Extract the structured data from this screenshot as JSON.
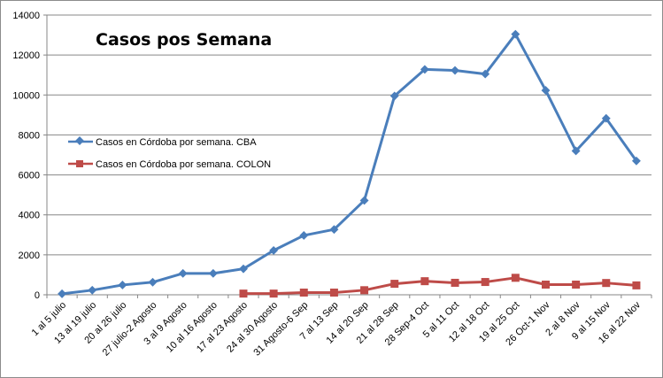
{
  "chart_data": {
    "type": "line",
    "title": "Casos pos Semana",
    "xlabel": "",
    "ylabel": "",
    "ylim": [
      0,
      14000
    ],
    "yticks": [
      0,
      2000,
      4000,
      6000,
      8000,
      10000,
      12000,
      14000
    ],
    "grid": true,
    "legend_position": "left",
    "categories": [
      "1 al 5 julio",
      "13 al 19 julio",
      "20 al 26 julio",
      "27 julio-2 Agosto",
      "3 al 9 Agosto",
      "10 al 16 Agosto",
      "17 al 23 Agosto",
      "24 al 30 Agosto",
      "31 Agosto-6 Sep",
      "7 al 13 Sep",
      "14 al 20 Sep",
      "21 al 28 Sep",
      "28 Sep-4 Oct",
      "5 al 11 Oct",
      "12 al 18 Oct",
      "19 al 25 Oct",
      "26 Oct-1 Nov",
      "2 al 8 Nov",
      "9 al 15 Nov",
      "16 al 22 Nov"
    ],
    "series": [
      {
        "name": "Casos en Córdoba por semana. CBA",
        "color": "#4a7ebb",
        "marker": "diamond",
        "values": [
          50,
          230,
          490,
          630,
          1070,
          1070,
          1300,
          2220,
          2970,
          3270,
          4720,
          9950,
          11280,
          11230,
          11050,
          13040,
          10230,
          7200,
          8830,
          6700
        ]
      },
      {
        "name": "Casos en Córdoba por semana. COLON",
        "color": "#be4b48",
        "marker": "square",
        "values": [
          null,
          null,
          null,
          null,
          null,
          null,
          60,
          60,
          110,
          110,
          230,
          550,
          680,
          600,
          640,
          850,
          510,
          510,
          590,
          470
        ]
      }
    ]
  }
}
